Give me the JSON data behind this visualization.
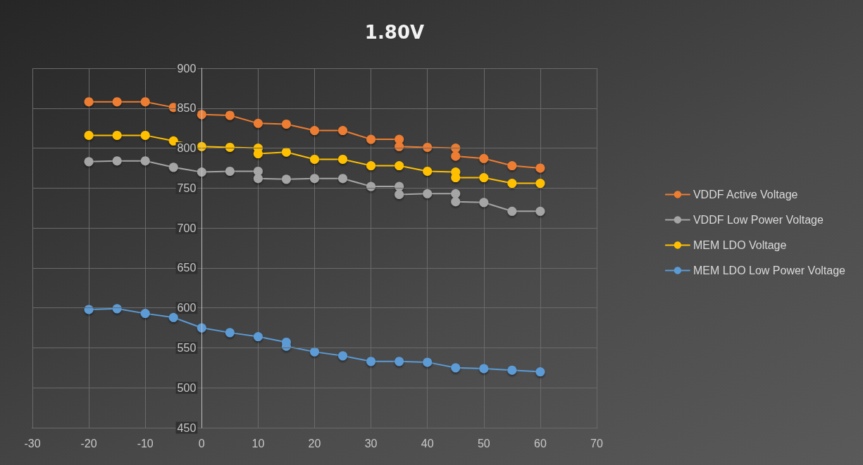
{
  "chart_data": {
    "type": "line",
    "title": "1.80V",
    "xlim": [
      -30,
      70
    ],
    "xticks": [
      -30,
      -20,
      -10,
      0,
      10,
      20,
      30,
      40,
      50,
      60,
      70
    ],
    "ylim": [
      450,
      900
    ],
    "yticks": [
      450,
      500,
      550,
      600,
      650,
      700,
      750,
      800,
      850,
      900
    ],
    "grid": true,
    "legend": "right",
    "marker": "circle",
    "line_style": "solid",
    "series": [
      {
        "name": "VDDF Active Voltage",
        "color": "#ed7d31",
        "x": [
          -20,
          -15,
          -10,
          -5,
          0,
          5,
          10,
          15,
          20,
          25,
          30,
          35,
          35,
          40,
          45,
          45,
          50,
          55,
          60
        ],
        "values": [
          858,
          858,
          858,
          851,
          842,
          841,
          831,
          830,
          822,
          822,
          811,
          811,
          802,
          801,
          800,
          790,
          787,
          778,
          775
        ]
      },
      {
        "name": "VDDF Low Power Voltage",
        "color": "#a5a5a5",
        "x": [
          -20,
          -15,
          -10,
          -5,
          0,
          5,
          10,
          10,
          15,
          20,
          25,
          30,
          35,
          35,
          40,
          45,
          45,
          50,
          55,
          60
        ],
        "values": [
          783,
          784,
          784,
          776,
          770,
          771,
          771,
          762,
          761,
          762,
          762,
          752,
          752,
          742,
          743,
          743,
          733,
          732,
          721,
          721
        ]
      },
      {
        "name": "MEM LDO Voltage",
        "color": "#ffc000",
        "x": [
          -20,
          -15,
          -10,
          -5,
          0,
          5,
          10,
          10,
          15,
          20,
          25,
          30,
          35,
          40,
          45,
          45,
          50,
          55,
          60
        ],
        "values": [
          816,
          816,
          816,
          809,
          802,
          801,
          800,
          793,
          795,
          786,
          786,
          778,
          778,
          771,
          770,
          763,
          763,
          756,
          756
        ]
      },
      {
        "name": "MEM LDO Low Power Voltage",
        "color": "#5b9bd5",
        "x": [
          -20,
          -15,
          -10,
          -5,
          0,
          5,
          10,
          15,
          15,
          20,
          25,
          30,
          35,
          40,
          45,
          50,
          55,
          60
        ],
        "values": [
          598,
          599,
          593,
          588,
          575,
          569,
          564,
          557,
          552,
          545,
          540,
          533,
          533,
          532,
          525,
          524,
          522,
          520
        ]
      }
    ]
  }
}
